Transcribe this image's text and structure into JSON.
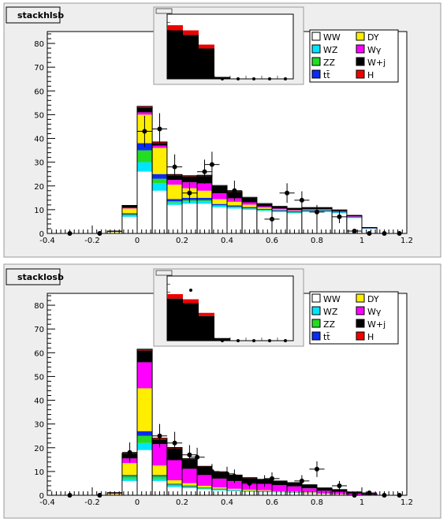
{
  "chart_data": [
    {
      "type": "bar",
      "stacked": true,
      "title": "stackhlsb",
      "xlim": [
        -0.4,
        1.2
      ],
      "ylim": [
        0,
        85
      ],
      "x_ticks": [
        "-0.4",
        "-0.2",
        "0",
        "0.2",
        "0.4",
        "0.6",
        "0.8",
        "1",
        "1.2"
      ],
      "y_ticks": [
        "0",
        "10",
        "20",
        "30",
        "40",
        "50",
        "60",
        "70",
        "80"
      ],
      "bin_edges": [
        -0.4,
        -0.333,
        -0.267,
        -0.2,
        -0.133,
        -0.067,
        0.0,
        0.067,
        0.133,
        0.2,
        0.267,
        0.333,
        0.4,
        0.467,
        0.533,
        0.6,
        0.667,
        0.733,
        0.8,
        0.867,
        0.933,
        1.0,
        1.067,
        1.133,
        1.2
      ],
      "legend": [
        "WW",
        "DY",
        "WZ",
        "Wγ",
        "ZZ",
        "W+j",
        "tt̄",
        "H"
      ],
      "series": [
        {
          "name": "WW",
          "values": [
            0,
            0,
            0,
            0,
            0.5,
            7,
            26,
            18,
            12,
            12.5,
            12.5,
            11,
            10.5,
            10,
            9.5,
            9,
            8.5,
            9,
            9,
            8.5,
            6.5,
            2,
            0,
            0
          ]
        },
        {
          "name": "WZ",
          "values": [
            0,
            0,
            0,
            0,
            0,
            0.5,
            4,
            3,
            1,
            1,
            1,
            0.6,
            0.5,
            0.4,
            0.3,
            0.3,
            0.3,
            0.3,
            0.3,
            0.3,
            0.2,
            0.1,
            0,
            0
          ]
        },
        {
          "name": "ZZ",
          "values": [
            0,
            0,
            0,
            0,
            0,
            0.5,
            5,
            2,
            0.5,
            0.5,
            0.5,
            0.3,
            0.3,
            0.2,
            0.2,
            0.2,
            0.2,
            0.2,
            0.2,
            0.1,
            0.1,
            0,
            0,
            0
          ]
        },
        {
          "name": "tt̄",
          "values": [
            0,
            0,
            0,
            0,
            0,
            0.5,
            3,
            2,
            1,
            1,
            1,
            0.5,
            0.5,
            0.5,
            0.4,
            0.4,
            0.4,
            0.4,
            0.4,
            0.3,
            0.2,
            0.1,
            0,
            0
          ]
        },
        {
          "name": "DY",
          "values": [
            0,
            0,
            0,
            0,
            0.2,
            2,
            12,
            11,
            6,
            4,
            3,
            2,
            1.5,
            1,
            0.5,
            0.3,
            0.2,
            0.1,
            0.1,
            0,
            0,
            0,
            0,
            0
          ]
        },
        {
          "name": "Wγ",
          "values": [
            0,
            0,
            0,
            0,
            0,
            0.3,
            1,
            1,
            2,
            2.5,
            3,
            2.5,
            1.5,
            1,
            0.5,
            0.3,
            0.3,
            0.3,
            0.3,
            0.2,
            0.2,
            0,
            0,
            0
          ]
        },
        {
          "name": "W+j",
          "values": [
            0,
            0,
            0,
            0,
            0.3,
            1,
            2,
            1,
            2,
            2.5,
            3.2,
            3.1,
            2.7,
            1.9,
            1,
            0.8,
            0.6,
            0.5,
            0.5,
            0.4,
            0.3,
            0.2,
            0,
            0
          ]
        },
        {
          "name": "H",
          "values": [
            0,
            0,
            0,
            0,
            0,
            0,
            0.5,
            0.5,
            0.3,
            0.3,
            0.3,
            0.2,
            0.2,
            0.2,
            0.2,
            0.1,
            0.1,
            0.1,
            0.1,
            0.1,
            0.1,
            0.1,
            0,
            0
          ]
        }
      ],
      "points": {
        "x": [
          -0.3,
          -0.167,
          0.033,
          0.1,
          0.167,
          0.233,
          0.3,
          0.333,
          0.433,
          0.6,
          0.667,
          0.733,
          0.8,
          0.9,
          0.967,
          1.033,
          1.1,
          1.167
        ],
        "y": [
          0,
          0,
          43,
          44,
          28,
          17,
          26,
          29,
          18,
          6,
          17,
          14,
          9,
          7,
          1,
          0,
          0,
          0
        ]
      },
      "inset": {
        "values": [
          75,
          68,
          47,
          3,
          0,
          0,
          0,
          0
        ],
        "overlay": [
          8,
          7,
          6,
          0,
          0,
          0,
          0,
          0
        ],
        "points": [
          58,
          58,
          12,
          0,
          0,
          0,
          0,
          0
        ]
      }
    },
    {
      "type": "bar",
      "stacked": true,
      "title": "stacklosb",
      "xlim": [
        -0.4,
        1.2
      ],
      "ylim": [
        0,
        85
      ],
      "x_ticks": [
        "-0.4",
        "-0.2",
        "0",
        "0.2",
        "0.4",
        "0.6",
        "0.8",
        "1",
        "1.2"
      ],
      "y_ticks": [
        "0",
        "10",
        "20",
        "30",
        "40",
        "50",
        "60",
        "70",
        "80"
      ],
      "bin_edges": [
        -0.4,
        -0.333,
        -0.267,
        -0.2,
        -0.133,
        -0.067,
        0.0,
        0.067,
        0.133,
        0.2,
        0.267,
        0.333,
        0.4,
        0.467,
        0.533,
        0.6,
        0.667,
        0.733,
        0.8,
        0.867,
        0.933,
        1.0,
        1.067,
        1.133,
        1.2
      ],
      "legend": [
        "WW",
        "DY",
        "WZ",
        "Wγ",
        "ZZ",
        "W+j",
        "tt̄",
        "H"
      ],
      "series": [
        {
          "name": "WW",
          "values": [
            0,
            0,
            0,
            0,
            0.3,
            6,
            19,
            6,
            3.5,
            3,
            2.5,
            2,
            1.8,
            1.5,
            1.3,
            1.2,
            1,
            0.8,
            0.6,
            0.4,
            0.2,
            0.1,
            0,
            0
          ]
        },
        {
          "name": "WZ",
          "values": [
            0,
            0,
            0,
            0,
            0,
            1,
            3,
            1,
            0.5,
            0.4,
            0.3,
            0.3,
            0.2,
            0.2,
            0.2,
            0.1,
            0.1,
            0.1,
            0,
            0,
            0,
            0,
            0,
            0
          ]
        },
        {
          "name": "ZZ",
          "values": [
            0,
            0,
            0,
            0,
            0,
            1,
            3,
            1,
            0.5,
            0.4,
            0.3,
            0.3,
            0.2,
            0.2,
            0.2,
            0.1,
            0.1,
            0.1,
            0,
            0,
            0,
            0,
            0,
            0
          ]
        },
        {
          "name": "tt̄",
          "values": [
            0,
            0,
            0,
            0,
            0,
            0.5,
            2,
            0.5,
            0.3,
            0.3,
            0.2,
            0.2,
            0.1,
            0.1,
            0.1,
            0.1,
            0.1,
            0.1,
            0,
            0,
            0,
            0,
            0,
            0
          ]
        },
        {
          "name": "DY",
          "values": [
            0,
            0,
            0,
            0,
            0.3,
            5,
            18,
            4,
            1.5,
            1,
            0.7,
            0.5,
            0.4,
            0.3,
            0.3,
            0.2,
            0.2,
            0.2,
            0.1,
            0.1,
            0,
            0,
            0,
            0
          ]
        },
        {
          "name": "Wγ",
          "values": [
            0,
            0,
            0,
            0,
            0.2,
            2,
            11,
            9,
            8.5,
            6,
            4.5,
            3.7,
            3.3,
            2.9,
            2.7,
            2.5,
            2.2,
            1.6,
            1.2,
            1,
            0.5,
            0.2,
            0,
            0
          ]
        },
        {
          "name": "W+j",
          "values": [
            0,
            0,
            0,
            0,
            0.3,
            2,
            5,
            2,
            5,
            4,
            3.5,
            2.7,
            2.3,
            2,
            1.8,
            1.7,
            1.5,
            1.4,
            1.1,
            0.8,
            0.6,
            0.3,
            0,
            0
          ]
        },
        {
          "name": "H",
          "values": [
            0,
            0,
            0,
            0,
            0,
            0.2,
            0.5,
            0.5,
            0.3,
            0.3,
            0.2,
            0.2,
            0.2,
            0.2,
            0.1,
            0.1,
            0.1,
            0.1,
            0.1,
            0.1,
            0.1,
            0,
            0,
            0
          ]
        }
      ],
      "points": {
        "x": [
          -0.3,
          -0.167,
          -0.033,
          0.1,
          0.167,
          0.233,
          0.267,
          0.333,
          0.4,
          0.433,
          0.5,
          0.567,
          0.6,
          0.733,
          0.8,
          0.9,
          0.967,
          1.033,
          1.1,
          1.167
        ],
        "y": [
          0,
          0,
          18,
          25,
          22,
          17,
          16,
          10,
          9,
          8,
          5,
          6,
          7,
          6,
          11,
          4,
          0,
          1,
          0,
          0
        ]
      },
      "inset": {
        "values": [
          65,
          58,
          38,
          4,
          0,
          0,
          0,
          0
        ],
        "overlay": [
          7,
          6,
          5,
          0,
          0,
          0,
          0,
          0
        ],
        "points": [
          60,
          78,
          32,
          0,
          0,
          0,
          0,
          0
        ]
      }
    }
  ],
  "colors": {
    "WW": "#ffffff",
    "WZ": "#00e5ff",
    "ZZ": "#22dd22",
    "tt̄": "#0a2cf0",
    "DY": "#ffee00",
    "Wγ": "#ff00ff",
    "W+j": "#000000",
    "H": "#ee0000",
    "frame_bg": "#eeeeee",
    "plot_bg": "#ffffff"
  }
}
